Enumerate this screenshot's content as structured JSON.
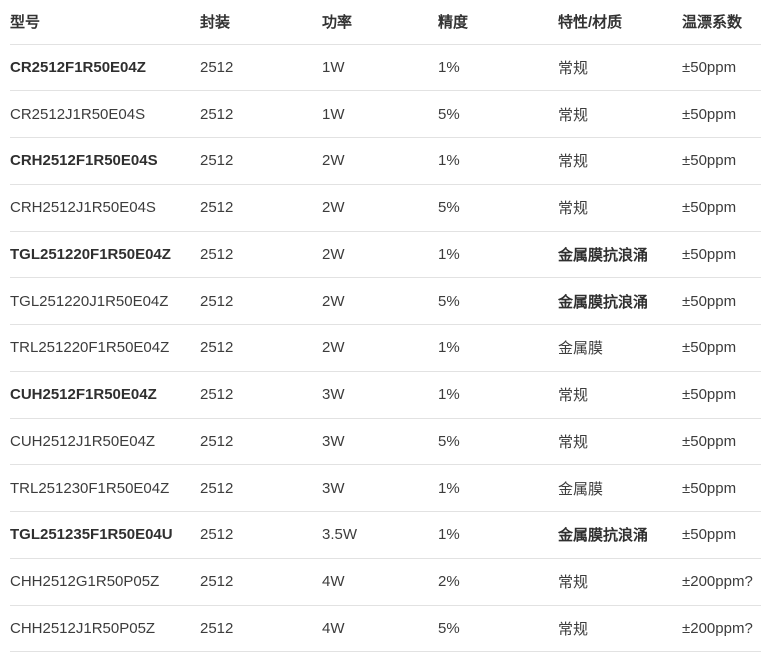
{
  "table": {
    "columns": [
      {
        "key": "model",
        "label": "型号"
      },
      {
        "key": "package",
        "label": "封装"
      },
      {
        "key": "power",
        "label": "功率"
      },
      {
        "key": "precision",
        "label": "精度"
      },
      {
        "key": "feature",
        "label": "特性/材质"
      },
      {
        "key": "tempco",
        "label": "温漂系数"
      }
    ],
    "rows": [
      {
        "model": "CR2512F1R50E04Z",
        "package": "2512",
        "power": "1W",
        "precision": "1%",
        "feature": "常规",
        "tempco": "±50ppm",
        "model_bold": true,
        "feature_bold": false
      },
      {
        "model": "CR2512J1R50E04S",
        "package": "2512",
        "power": "1W",
        "precision": "5%",
        "feature": "常规",
        "tempco": "±50ppm",
        "model_bold": false,
        "feature_bold": false
      },
      {
        "model": "CRH2512F1R50E04S",
        "package": "2512",
        "power": "2W",
        "precision": "1%",
        "feature": "常规",
        "tempco": "±50ppm",
        "model_bold": true,
        "feature_bold": false
      },
      {
        "model": "CRH2512J1R50E04S",
        "package": "2512",
        "power": "2W",
        "precision": "5%",
        "feature": "常规",
        "tempco": "±50ppm",
        "model_bold": false,
        "feature_bold": false
      },
      {
        "model": "TGL251220F1R50E04Z",
        "package": "2512",
        "power": "2W",
        "precision": "1%",
        "feature": "金属膜抗浪涌",
        "tempco": "±50ppm",
        "model_bold": true,
        "feature_bold": true
      },
      {
        "model": "TGL251220J1R50E04Z",
        "package": "2512",
        "power": "2W",
        "precision": "5%",
        "feature": "金属膜抗浪涌",
        "tempco": "±50ppm",
        "model_bold": false,
        "feature_bold": true
      },
      {
        "model": "TRL251220F1R50E04Z",
        "package": "2512",
        "power": "2W",
        "precision": "1%",
        "feature": "金属膜",
        "tempco": "±50ppm",
        "model_bold": false,
        "feature_bold": false
      },
      {
        "model": "CUH2512F1R50E04Z",
        "package": "2512",
        "power": "3W",
        "precision": "1%",
        "feature": "常规",
        "tempco": "±50ppm",
        "model_bold": true,
        "feature_bold": false
      },
      {
        "model": "CUH2512J1R50E04Z",
        "package": "2512",
        "power": "3W",
        "precision": "5%",
        "feature": "常规",
        "tempco": "±50ppm",
        "model_bold": false,
        "feature_bold": false
      },
      {
        "model": "TRL251230F1R50E04Z",
        "package": "2512",
        "power": "3W",
        "precision": "1%",
        "feature": "金属膜",
        "tempco": "±50ppm",
        "model_bold": false,
        "feature_bold": false
      },
      {
        "model": "TGL251235F1R50E04U",
        "package": "2512",
        "power": "3.5W",
        "precision": "1%",
        "feature": "金属膜抗浪涌",
        "tempco": "±50ppm",
        "model_bold": true,
        "feature_bold": true
      },
      {
        "model": "CHH2512G1R50P05Z",
        "package": "2512",
        "power": "4W",
        "precision": "2%",
        "feature": "常规",
        "tempco": "±200ppm?",
        "model_bold": false,
        "feature_bold": false
      },
      {
        "model": "CHH2512J1R50P05Z",
        "package": "2512",
        "power": "4W",
        "precision": "5%",
        "feature": "常规",
        "tempco": "±200ppm?",
        "model_bold": false,
        "feature_bold": false
      }
    ]
  },
  "colors": {
    "background": "#ffffff",
    "header_text": "#333333",
    "body_text": "#3c3c3c",
    "bold_text": "#2f2f2f",
    "row_border": "#e2e2e2"
  }
}
